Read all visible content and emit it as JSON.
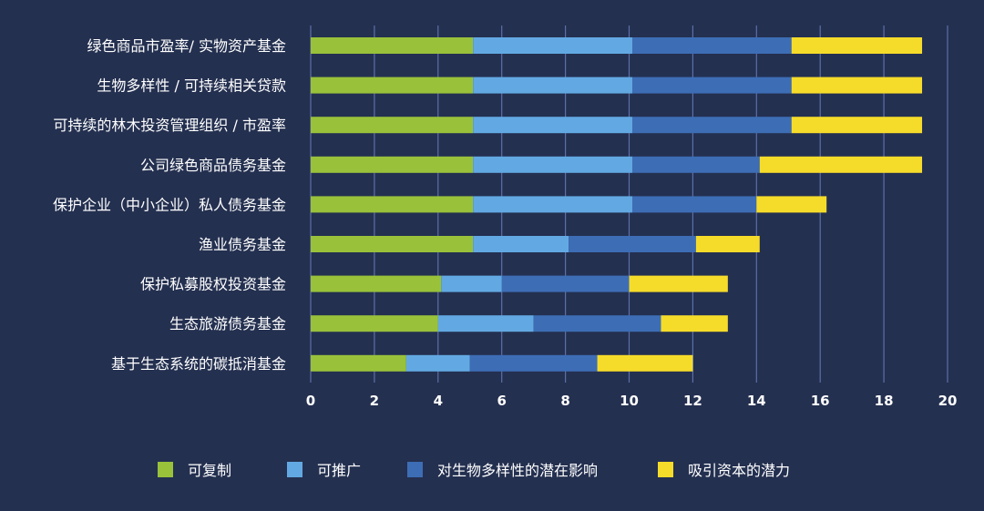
{
  "chart_data": {
    "type": "bar",
    "orientation": "horizontal",
    "stacked": true,
    "categories": [
      "绿色商品市盈率/ 实物资产基金",
      "生物多样性 / 可持续相关贷款",
      "可持续的林木投资管理组织 / 市盈率",
      "公司绿色商品债务基金",
      "保护企业（中小企业）私人债务基金",
      "渔业债务基金",
      "保护私募股权投资基金",
      "生态旅游债务基金",
      "基于生态系统的碳抵消基金"
    ],
    "series": [
      {
        "name": "可复制",
        "color": "#99c23a",
        "values": [
          5.1,
          5.1,
          5.1,
          5.1,
          5.1,
          5.1,
          4.1,
          4.0,
          3.0
        ]
      },
      {
        "name": "可推广",
        "color": "#62a9e3",
        "values": [
          5.0,
          5.0,
          5.0,
          5.0,
          5.0,
          3.0,
          1.9,
          3.0,
          2.0
        ]
      },
      {
        "name": "对生物多样性的潜在影响",
        "color": "#3d6db5",
        "values": [
          5.0,
          5.0,
          5.0,
          4.0,
          3.9,
          4.0,
          4.0,
          4.0,
          4.0
        ]
      },
      {
        "name": "吸引资本的潜力",
        "color": "#f6dc2a",
        "values": [
          4.1,
          4.1,
          4.1,
          5.1,
          2.2,
          2.0,
          3.1,
          2.1,
          3.0
        ]
      }
    ],
    "xticks": [
      "0",
      "2",
      "4",
      "6",
      "8",
      "10",
      "12",
      "14",
      "16",
      "18",
      "20"
    ],
    "xlim": [
      0,
      20
    ],
    "grid": true,
    "legend": "bottom"
  }
}
